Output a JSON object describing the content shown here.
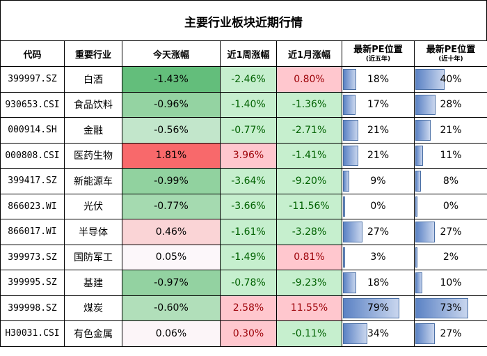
{
  "title": "主要行业板块近期行情",
  "headers": {
    "code": "代码",
    "industry": "重要行业",
    "today": "今天涨幅",
    "week": "近1周涨幅",
    "month": "近1月涨幅",
    "pe5": "最新PE位置",
    "pe5_sub": "(近五年)",
    "pe10": "最新PE位置",
    "pe10_sub": "(近十年)"
  },
  "rows": [
    {
      "code": "399997.SZ",
      "name": "白酒",
      "today": "-1.43%",
      "week": "-2.46%",
      "month": "0.80%",
      "pe5": "18%",
      "pe10": "40%",
      "pe5_val": 0.18,
      "pe10_val": 0.4
    },
    {
      "code": "930653.CSI",
      "name": "食品饮料",
      "today": "-0.96%",
      "week": "-1.40%",
      "month": "-1.36%",
      "pe5": "17%",
      "pe10": "28%",
      "pe5_val": 0.17,
      "pe10_val": 0.28
    },
    {
      "code": "000914.SH",
      "name": "金融",
      "today": "-0.56%",
      "week": "-0.77%",
      "month": "-2.71%",
      "pe5": "21%",
      "pe10": "21%",
      "pe5_val": 0.21,
      "pe10_val": 0.21
    },
    {
      "code": "000808.CSI",
      "name": "医药生物",
      "today": "1.81%",
      "week": "3.96%",
      "month": "-1.41%",
      "pe5": "21%",
      "pe10": "11%",
      "pe5_val": 0.21,
      "pe10_val": 0.11
    },
    {
      "code": "399417.SZ",
      "name": "新能源车",
      "today": "-0.99%",
      "week": "-3.64%",
      "month": "-9.20%",
      "pe5": "9%",
      "pe10": "8%",
      "pe5_val": 0.09,
      "pe10_val": 0.08
    },
    {
      "code": "866023.WI",
      "name": "光伏",
      "today": "-0.77%",
      "week": "-3.66%",
      "month": "-11.56%",
      "pe5": "0%",
      "pe10": "0%",
      "pe5_val": 0.0,
      "pe10_val": 0.0
    },
    {
      "code": "866017.WI",
      "name": "半导体",
      "today": "0.46%",
      "week": "-1.61%",
      "month": "-3.28%",
      "pe5": "27%",
      "pe10": "27%",
      "pe5_val": 0.27,
      "pe10_val": 0.27
    },
    {
      "code": "399973.SZ",
      "name": "国防军工",
      "today": "0.05%",
      "week": "-1.49%",
      "month": "0.81%",
      "pe5": "3%",
      "pe10": "2%",
      "pe5_val": 0.03,
      "pe10_val": 0.02
    },
    {
      "code": "399995.SZ",
      "name": "基建",
      "today": "-0.97%",
      "week": "-0.78%",
      "month": "-9.23%",
      "pe5": "18%",
      "pe10": "10%",
      "pe5_val": 0.18,
      "pe10_val": 0.1
    },
    {
      "code": "399998.SZ",
      "name": "煤炭",
      "today": "-0.60%",
      "week": "2.58%",
      "month": "11.55%",
      "pe5": "79%",
      "pe10": "73%",
      "pe5_val": 0.79,
      "pe10_val": 0.73
    },
    {
      "code": "H30031.CSI",
      "name": "有色金属",
      "today": "0.06%",
      "week": "0.30%",
      "month": "-0.11%",
      "pe5": "34%",
      "pe10": "27%",
      "pe5_val": 0.34,
      "pe10_val": 0.27
    }
  ],
  "colors": {
    "today_bg": [
      "#63be7b",
      "#94d3a2",
      "#c2e6cb",
      "#f8696b",
      "#91d29f",
      "#a5dab0",
      "#fad4d6",
      "#fcf7fa",
      "#93d2a1",
      "#b1dfba",
      "#fcf5f8"
    ],
    "week_bg": [
      "#c6efce",
      "#c6efce",
      "#c6efce",
      "#ffc7ce",
      "#c6efce",
      "#c6efce",
      "#c6efce",
      "#c6efce",
      "#c6efce",
      "#ffc7ce",
      "#ffc7ce"
    ],
    "month_bg": [
      "#ffc7ce",
      "#c6efce",
      "#c6efce",
      "#c6efce",
      "#c6efce",
      "#c6efce",
      "#c6efce",
      "#ffc7ce",
      "#c6efce",
      "#ffc7ce",
      "#c6efce"
    ],
    "week_fg": [
      "#006100",
      "#006100",
      "#006100",
      "#9c0006",
      "#006100",
      "#006100",
      "#006100",
      "#006100",
      "#006100",
      "#9c0006",
      "#9c0006"
    ],
    "month_fg": [
      "#9c0006",
      "#006100",
      "#006100",
      "#006100",
      "#006100",
      "#006100",
      "#006100",
      "#9c0006",
      "#006100",
      "#9c0006",
      "#006100"
    ]
  }
}
